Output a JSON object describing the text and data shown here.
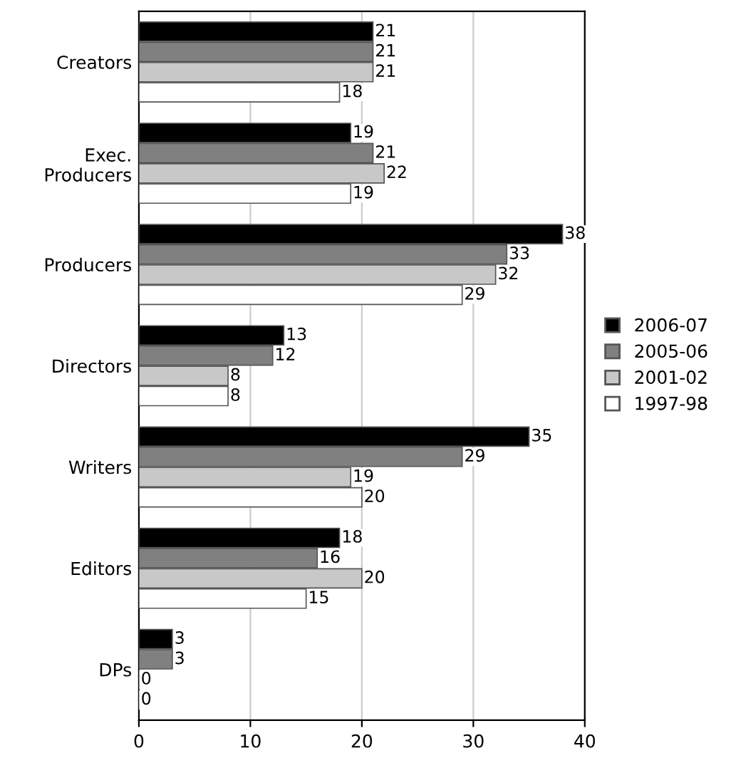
{
  "chart_data": {
    "type": "bar",
    "orientation": "horizontal",
    "categories": [
      "Creators",
      "Exec.\nProducers",
      "Producers",
      "Directors",
      "Writers",
      "Editors",
      "DPs"
    ],
    "series": [
      {
        "name": "2006-07",
        "color": "#000000",
        "values": [
          21,
          19,
          38,
          13,
          35,
          18,
          3
        ]
      },
      {
        "name": "2005-06",
        "color": "#808080",
        "values": [
          21,
          21,
          33,
          12,
          29,
          16,
          3
        ]
      },
      {
        "name": "2001-02",
        "color": "#c8c8c8",
        "values": [
          21,
          22,
          32,
          8,
          19,
          20,
          0
        ]
      },
      {
        "name": "1997-98",
        "color": "#ffffff",
        "values": [
          18,
          19,
          29,
          8,
          20,
          15,
          0
        ]
      }
    ],
    "xlim": [
      0,
      40
    ],
    "xticks": [
      0,
      10,
      20,
      30,
      40
    ],
    "grid": "x",
    "legend": "right",
    "data_labels": true
  }
}
